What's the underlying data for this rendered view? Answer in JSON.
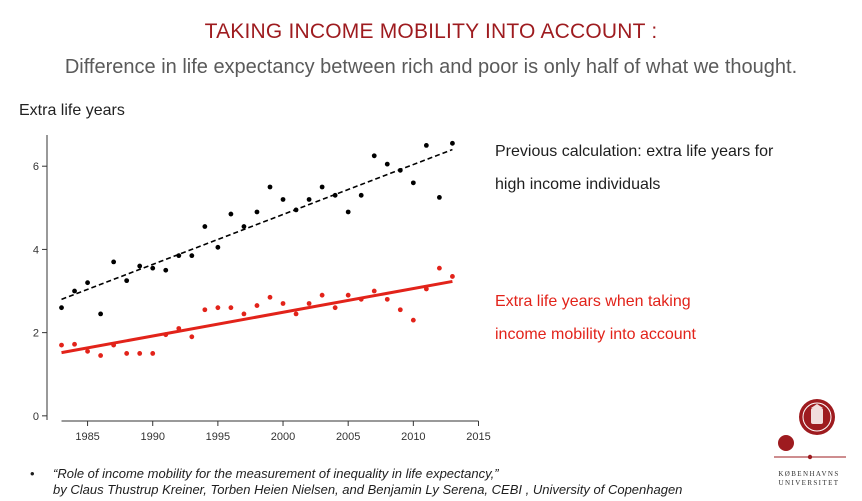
{
  "header": {
    "title": "TAKING INCOME MOBILITY INTO ACCOUNT :",
    "subtitle": "Difference in life expectancy between rich and poor is only half of what we thought."
  },
  "annotations": {
    "high_income_line1": "Previous calculation: extra life years for",
    "high_income_line2": "high income individuals",
    "mobility_line1": "Extra life years when taking",
    "mobility_line2": "income mobility into account"
  },
  "footer": {
    "bullet": "•",
    "citation_line1": "“Role of income mobility for the measurement of inequality in life expectancy,”",
    "citation_line2": "by Claus Thustrup Kreiner, Torben Heien Nielsen, and Benjamin Ly Serena, CEBI , University of Copenhagen"
  },
  "logo": {
    "line1": "KØBENHAVNS",
    "line2": "UNIVERSITET"
  },
  "colors": {
    "title": "#9e1b1f",
    "black_series": "#000000",
    "red_series": "#e2231a",
    "logo": "#9e1b1f"
  },
  "chart_data": {
    "type": "scatter",
    "title": "",
    "ylabel": "Extra life years",
    "xlabel": "",
    "xlim": [
      1982.5,
      2015.5
    ],
    "ylim": [
      -0.1,
      6.75
    ],
    "xticks": [
      1985,
      1990,
      1995,
      2000,
      2005,
      2010,
      2015
    ],
    "yticks": [
      0,
      2,
      4,
      6
    ],
    "series": [
      {
        "name": "Previous calculation: extra life years for high income individuals",
        "color": "#000000",
        "trend": {
          "style": "dashed",
          "x": [
            1983,
            2013
          ],
          "y": [
            2.8,
            6.4
          ]
        },
        "points": [
          [
            1983,
            2.6
          ],
          [
            1984,
            3.0
          ],
          [
            1985,
            3.2
          ],
          [
            1986,
            2.45
          ],
          [
            1987,
            3.7
          ],
          [
            1988,
            3.25
          ],
          [
            1989,
            3.6
          ],
          [
            1990,
            3.55
          ],
          [
            1991,
            3.5
          ],
          [
            1992,
            3.85
          ],
          [
            1993,
            3.85
          ],
          [
            1994,
            4.55
          ],
          [
            1995,
            4.05
          ],
          [
            1996,
            4.85
          ],
          [
            1997,
            4.55
          ],
          [
            1998,
            4.9
          ],
          [
            1999,
            5.5
          ],
          [
            2000,
            5.2
          ],
          [
            2001,
            4.95
          ],
          [
            2002,
            5.2
          ],
          [
            2003,
            5.5
          ],
          [
            2004,
            5.3
          ],
          [
            2005,
            4.9
          ],
          [
            2006,
            5.3
          ],
          [
            2007,
            6.25
          ],
          [
            2008,
            6.05
          ],
          [
            2009,
            5.9
          ],
          [
            2010,
            5.6
          ],
          [
            2011,
            6.5
          ],
          [
            2012,
            5.25
          ],
          [
            2013,
            6.55
          ]
        ]
      },
      {
        "name": "Extra life years when taking income mobility into account",
        "color": "#e2231a",
        "trend": {
          "style": "solid",
          "x": [
            1983,
            2013
          ],
          "y": [
            1.52,
            3.23
          ]
        },
        "points": [
          [
            1983,
            1.7
          ],
          [
            1984,
            1.72
          ],
          [
            1985,
            1.55
          ],
          [
            1986,
            1.45
          ],
          [
            1987,
            1.7
          ],
          [
            1988,
            1.5
          ],
          [
            1989,
            1.5
          ],
          [
            1990,
            1.5
          ],
          [
            1991,
            1.95
          ],
          [
            1992,
            2.1
          ],
          [
            1993,
            1.9
          ],
          [
            1994,
            2.55
          ],
          [
            1995,
            2.6
          ],
          [
            1996,
            2.6
          ],
          [
            1997,
            2.45
          ],
          [
            1998,
            2.65
          ],
          [
            1999,
            2.85
          ],
          [
            2000,
            2.7
          ],
          [
            2001,
            2.45
          ],
          [
            2002,
            2.7
          ],
          [
            2003,
            2.9
          ],
          [
            2004,
            2.6
          ],
          [
            2005,
            2.9
          ],
          [
            2006,
            2.8
          ],
          [
            2007,
            3.0
          ],
          [
            2008,
            2.8
          ],
          [
            2009,
            2.55
          ],
          [
            2010,
            2.3
          ],
          [
            2011,
            3.05
          ],
          [
            2012,
            3.55
          ],
          [
            2013,
            3.35
          ]
        ]
      }
    ]
  }
}
